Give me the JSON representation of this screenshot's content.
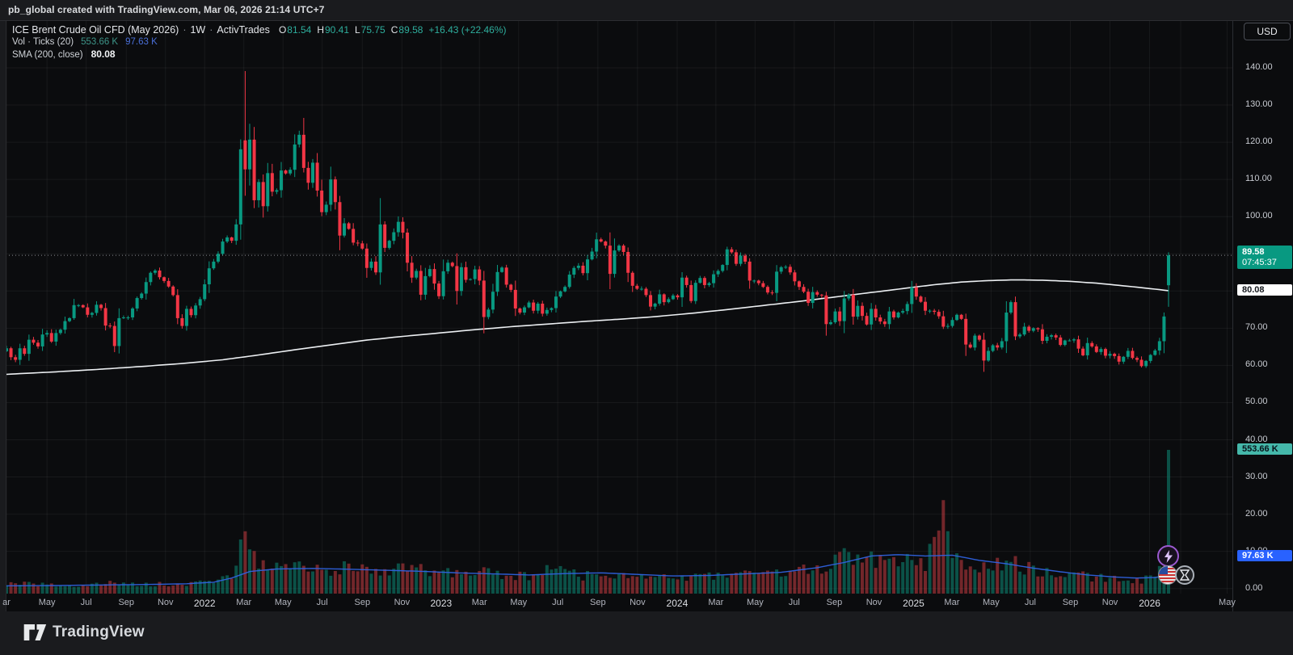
{
  "top_bar": {
    "text": "pb_global created with TradingView.com, Mar 06, 2026 21:14 UTC+7"
  },
  "legend": {
    "title": "ICE Brent Crude Oil CFD (May 2026)",
    "separator": "·",
    "interval": "1W",
    "broker": "ActivTrades",
    "open_label": "O",
    "open": "81.54",
    "high_label": "H",
    "high": "90.41",
    "low_label": "L",
    "low": "75.75",
    "close_label": "C",
    "close": "89.58",
    "change": "+16.43 (+22.46%)",
    "vol_label": "Vol · Ticks (20)",
    "vol_value": "553.66 K",
    "vol_ma_value": "97.63 K",
    "sma_label": "SMA (200, close)",
    "sma_value": "80.08"
  },
  "price_axis": {
    "currency": "USD",
    "ticks": [
      {
        "label": "140.00",
        "value": 140
      },
      {
        "label": "130.00",
        "value": 130
      },
      {
        "label": "120.00",
        "value": 120
      },
      {
        "label": "110.00",
        "value": 110
      },
      {
        "label": "100.00",
        "value": 100
      },
      {
        "label": "70.00",
        "value": 70
      },
      {
        "label": "60.00",
        "value": 60
      },
      {
        "label": "50.00",
        "value": 50
      },
      {
        "label": "40.00",
        "value": 40
      },
      {
        "label": "30.00",
        "value": 30
      },
      {
        "label": "20.00",
        "value": 20
      },
      {
        "label": "10.00",
        "value": 10
      },
      {
        "label": "0.00",
        "value": 0
      }
    ],
    "last_price": "89.58",
    "countdown": "07:45:37",
    "sma_label": "80.08",
    "vol_label": "553.66 K",
    "vol_ma_label": "97.63 K"
  },
  "time_axis": {
    "labels": [
      {
        "text": "ar",
        "week": 0,
        "year": false
      },
      {
        "text": "May",
        "week": 9,
        "year": false
      },
      {
        "text": "Jul",
        "week": 17.7,
        "year": false
      },
      {
        "text": "Sep",
        "week": 26.6,
        "year": false
      },
      {
        "text": "Nov",
        "week": 35.3,
        "year": false
      },
      {
        "text": "2022",
        "week": 44,
        "year": true
      },
      {
        "text": "Mar",
        "week": 52.7,
        "year": false
      },
      {
        "text": "May",
        "week": 61.4,
        "year": false
      },
      {
        "text": "Jul",
        "week": 70.1,
        "year": false
      },
      {
        "text": "Sep",
        "week": 79,
        "year": false
      },
      {
        "text": "Nov",
        "week": 87.8,
        "year": false
      },
      {
        "text": "2023",
        "week": 96.5,
        "year": true
      },
      {
        "text": "Mar",
        "week": 105,
        "year": false
      },
      {
        "text": "May",
        "week": 113.7,
        "year": false
      },
      {
        "text": "Jul",
        "week": 122.4,
        "year": false
      },
      {
        "text": "Sep",
        "week": 131.3,
        "year": false
      },
      {
        "text": "Nov",
        "week": 140.1,
        "year": false
      },
      {
        "text": "2024",
        "week": 148.9,
        "year": true
      },
      {
        "text": "Mar",
        "week": 157.5,
        "year": false
      },
      {
        "text": "May",
        "week": 166.2,
        "year": false
      },
      {
        "text": "Jul",
        "week": 174.9,
        "year": false
      },
      {
        "text": "Sep",
        "week": 183.8,
        "year": false
      },
      {
        "text": "Nov",
        "week": 192.6,
        "year": false
      },
      {
        "text": "2025",
        "week": 201.4,
        "year": true
      },
      {
        "text": "Mar",
        "week": 209.9,
        "year": false
      },
      {
        "text": "May",
        "week": 218.6,
        "year": false
      },
      {
        "text": "Jul",
        "week": 227.3,
        "year": false
      },
      {
        "text": "Sep",
        "week": 236.2,
        "year": false
      },
      {
        "text": "Nov",
        "week": 245,
        "year": false
      },
      {
        "text": "2026",
        "week": 253.8,
        "year": true
      },
      {
        "text": "May",
        "week": 271,
        "year": false
      }
    ],
    "extra_grid_weeks": [
      260.7
    ]
  },
  "footer": {
    "brand": "TradingView"
  },
  "markers": [
    {
      "name": "lightning-event"
    },
    {
      "name": "us-flag-event"
    },
    {
      "name": "hourglass-event"
    }
  ],
  "colors": {
    "up": "#089981",
    "down": "#f23645",
    "vol_up": "rgba(12,138,118,0.55)",
    "vol_down": "rgba(200,60,65,0.55)",
    "sma_line": "#eceff2",
    "vol_ma_line": "#2f62e0",
    "grid": "rgba(255,255,255,0.055)",
    "price_dotted": "#b5b8bf",
    "bg": "#0b0c0e"
  },
  "chart_data": {
    "type": "candlestick",
    "title": "ICE Brent Crude Oil CFD (May 2026)",
    "interval": "1W",
    "x_start": "Mar 2021",
    "x_end": "Mar 2026",
    "ylim": [
      0,
      140
    ],
    "grid_step": 10,
    "legend_position": "top-left",
    "last_candle": {
      "o": 81.54,
      "h": 90.41,
      "l": 75.75,
      "c": 89.58,
      "change_abs": 16.43,
      "change_pct": 22.46
    },
    "sma200_last": 80.08,
    "volume_last_k": 553.66,
    "volume_ma_last_k": 97.63,
    "closes": [
      64.6,
      62.2,
      61.5,
      64.6,
      63.1,
      66.9,
      66.1,
      65.1,
      68.3,
      68.7,
      66.4,
      68.7,
      69.6,
      71.9,
      72.7,
      76.2,
      76.2,
      75.6,
      73.6,
      74.1,
      76.3,
      75.4,
      70.7,
      70.6,
      65.2,
      72.7,
      72.9,
      72.9,
      75.3,
      78.1,
      79.3,
      82.4,
      84.9,
      85.5,
      83.7,
      82.7,
      81.2,
      78.9,
      72.7,
      70.6,
      75.2,
      73.5,
      76.1,
      77.8,
      81.8,
      86.1,
      87.9,
      90.0,
      93.3,
      94.4,
      93.5,
      97.9,
      118.1,
      112.7,
      120.7,
      104.4,
      109.3,
      102.8,
      111.7,
      106.7,
      107.1,
      112.4,
      111.6,
      112.6,
      119.4,
      122.0,
      113.1,
      109.1,
      114.5,
      107.0,
      101.2,
      103.2,
      110.0,
      103.9,
      94.9,
      98.2,
      96.7,
      93.0,
      92.8,
      91.4,
      86.2,
      87.9,
      85.0,
      97.9,
      91.6,
      93.5,
      95.8,
      98.6,
      95.7,
      87.6,
      83.6,
      85.4,
      79.0,
      84.0,
      85.9,
      82.0,
      78.6,
      85.3,
      87.6,
      86.7,
      80.0,
      86.4,
      83.0,
      83.2,
      85.8,
      82.8,
      73.0,
      75.0,
      79.8,
      85.1,
      86.3,
      81.7,
      80.3,
      75.3,
      74.2,
      75.6,
      76.9,
      74.7,
      76.6,
      73.9,
      74.9,
      75.4,
      78.5,
      79.9,
      81.1,
      84.4,
      86.2,
      86.8,
      84.8,
      88.5,
      90.6,
      93.9,
      93.3,
      92.2,
      84.6,
      90.9,
      92.2,
      90.5,
      84.9,
      81.4,
      80.6,
      80.6,
      78.9,
      75.8,
      76.6,
      79.1,
      77.0,
      77.8,
      78.8,
      78.3,
      83.6,
      81.6,
      77.3,
      82.2,
      83.5,
      81.6,
      82.1,
      84.5,
      85.4,
      87.0,
      91.2,
      90.4,
      87.3,
      89.5,
      87.9,
      82.8,
      82.8,
      82.1,
      81.1,
      79.6,
      79.5,
      85.2,
      86.4,
      86.5,
      85.0,
      82.6,
      81.1,
      79.8,
      76.8,
      79.7,
      79.0,
      78.8,
      71.1,
      71.6,
      74.5,
      71.9,
      78.0,
      79.0,
      73.1,
      76.0,
      73.3,
      71.0,
      75.2,
      72.9,
      71.8,
      71.1,
      74.5,
      72.9,
      74.2,
      74.6,
      76.5,
      81.0,
      78.5,
      77.1,
      74.7,
      74.7,
      74.4,
      73.2,
      70.4,
      70.6,
      72.2,
      73.6,
      72.5,
      65.6,
      64.8,
      68.0,
      66.9,
      61.3,
      63.9,
      65.4,
      64.8,
      66.5,
      74.2,
      77.0,
      67.8,
      68.3,
      70.4,
      69.3,
      70.0,
      69.7,
      66.6,
      67.7,
      68.1,
      67.5,
      65.5,
      66.7,
      66.7,
      67.0,
      64.5,
      62.7,
      66.0,
      65.1,
      63.6,
      64.4,
      62.6,
      63.1,
      62.5,
      61.0,
      62.3,
      63.9,
      62.0,
      61.5,
      59.8,
      61.2,
      62.8,
      64.0,
      66.5,
      73.15,
      89.58
    ],
    "overrides": {
      "53": {
        "o": 120.5,
        "h": 139.13,
        "l": 105.6,
        "c": 112.7
      },
      "224": {
        "h": 78.5,
        "l": 66.8
      },
      "258": {
        "o": 81.54,
        "h": 90.41,
        "l": 75.75,
        "c": 89.58
      }
    },
    "sma200_points": [
      [
        0,
        57.6
      ],
      [
        10,
        58.2
      ],
      [
        20,
        58.9
      ],
      [
        30,
        59.7
      ],
      [
        40,
        60.6
      ],
      [
        48,
        61.5
      ],
      [
        56,
        62.8
      ],
      [
        64,
        64.2
      ],
      [
        72,
        65.5
      ],
      [
        80,
        66.8
      ],
      [
        88,
        67.8
      ],
      [
        96,
        68.7
      ],
      [
        104,
        69.6
      ],
      [
        112,
        70.4
      ],
      [
        120,
        71.1
      ],
      [
        128,
        71.8
      ],
      [
        136,
        72.4
      ],
      [
        144,
        73.1
      ],
      [
        152,
        74.0
      ],
      [
        160,
        75.0
      ],
      [
        168,
        76.1
      ],
      [
        176,
        77.2
      ],
      [
        184,
        78.4
      ],
      [
        192,
        79.6
      ],
      [
        200,
        80.8
      ],
      [
        206,
        81.7
      ],
      [
        212,
        82.4
      ],
      [
        218,
        82.8
      ],
      [
        224,
        83.0
      ],
      [
        230,
        82.9
      ],
      [
        236,
        82.6
      ],
      [
        242,
        82.1
      ],
      [
        248,
        81.4
      ],
      [
        252,
        80.9
      ],
      [
        255,
        80.5
      ],
      [
        258,
        80.08
      ]
    ],
    "volume_anchors_k": [
      [
        0,
        38
      ],
      [
        8,
        34
      ],
      [
        16,
        30
      ],
      [
        24,
        40
      ],
      [
        32,
        36
      ],
      [
        40,
        34
      ],
      [
        46,
        50
      ],
      [
        50,
        70
      ],
      [
        52,
        190
      ],
      [
        53,
        240
      ],
      [
        54,
        150
      ],
      [
        56,
        120
      ],
      [
        60,
        100
      ],
      [
        66,
        105
      ],
      [
        72,
        95
      ],
      [
        78,
        100
      ],
      [
        84,
        90
      ],
      [
        90,
        95
      ],
      [
        96,
        80
      ],
      [
        102,
        75
      ],
      [
        106,
        95
      ],
      [
        110,
        70
      ],
      [
        116,
        65
      ],
      [
        122,
        100
      ],
      [
        128,
        70
      ],
      [
        134,
        75
      ],
      [
        140,
        65
      ],
      [
        146,
        60
      ],
      [
        152,
        65
      ],
      [
        158,
        70
      ],
      [
        164,
        80
      ],
      [
        170,
        75
      ],
      [
        176,
        85
      ],
      [
        182,
        100
      ],
      [
        186,
        175
      ],
      [
        189,
        120
      ],
      [
        192,
        130
      ],
      [
        196,
        110
      ],
      [
        200,
        125
      ],
      [
        204,
        115
      ],
      [
        208,
        360
      ],
      [
        210,
        130
      ],
      [
        214,
        110
      ],
      [
        218,
        105
      ],
      [
        222,
        130
      ],
      [
        226,
        100
      ],
      [
        230,
        85
      ],
      [
        234,
        75
      ],
      [
        238,
        70
      ],
      [
        242,
        62
      ],
      [
        246,
        55
      ],
      [
        250,
        50
      ],
      [
        253,
        55
      ],
      [
        255,
        70
      ],
      [
        256,
        85
      ],
      [
        257,
        110
      ],
      [
        258,
        553.66
      ]
    ],
    "volume_overrides_k": {
      "53": 240,
      "186": 175,
      "208": 360,
      "258": 553.66
    },
    "volume_ma_points_k": [
      [
        0,
        30
      ],
      [
        10,
        31
      ],
      [
        20,
        33
      ],
      [
        30,
        35
      ],
      [
        40,
        38
      ],
      [
        46,
        44
      ],
      [
        50,
        60
      ],
      [
        54,
        85
      ],
      [
        60,
        95
      ],
      [
        68,
        97
      ],
      [
        76,
        94
      ],
      [
        84,
        90
      ],
      [
        92,
        86
      ],
      [
        100,
        80
      ],
      [
        108,
        76
      ],
      [
        116,
        72
      ],
      [
        124,
        77
      ],
      [
        132,
        80
      ],
      [
        140,
        74
      ],
      [
        148,
        68
      ],
      [
        156,
        70
      ],
      [
        164,
        76
      ],
      [
        172,
        82
      ],
      [
        180,
        100
      ],
      [
        186,
        120
      ],
      [
        192,
        145
      ],
      [
        198,
        150
      ],
      [
        204,
        145
      ],
      [
        210,
        148
      ],
      [
        216,
        128
      ],
      [
        222,
        115
      ],
      [
        228,
        98
      ],
      [
        234,
        84
      ],
      [
        240,
        72
      ],
      [
        246,
        64
      ],
      [
        251,
        60
      ],
      [
        255,
        62
      ],
      [
        257,
        68
      ],
      [
        258,
        97.63
      ]
    ]
  }
}
